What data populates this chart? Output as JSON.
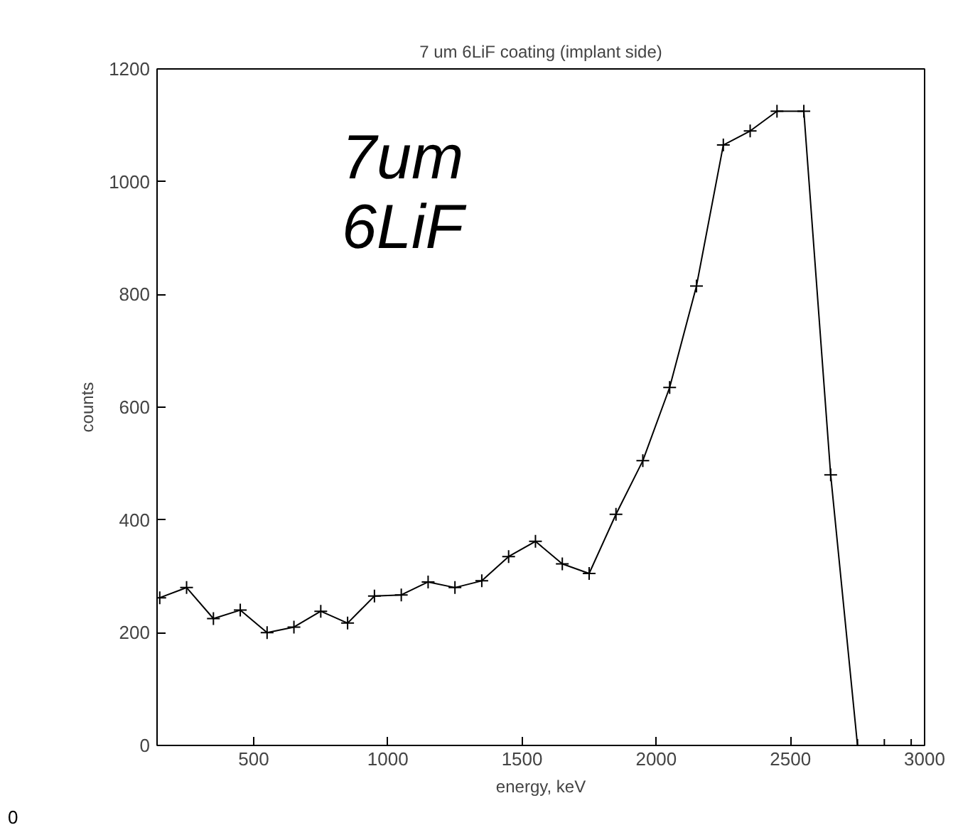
{
  "chart_data": {
    "type": "line",
    "title": "7 um 6LiF coating (implant side)",
    "xlabel": "energy, keV",
    "ylabel": "counts",
    "annotations": [
      "7um\n6LiF",
      "0"
    ],
    "x": [
      150,
      250,
      350,
      450,
      550,
      650,
      750,
      850,
      950,
      1050,
      1150,
      1250,
      1350,
      1450,
      1550,
      1650,
      1750,
      1850,
      1950,
      2050,
      2150,
      2250,
      2350,
      2450,
      2550,
      2650,
      2750,
      2850,
      2950
    ],
    "series": [
      {
        "color": "#000000",
        "values": [
          262,
          280,
          225,
          240,
          200,
          210,
          238,
          217,
          265,
          267,
          290,
          280,
          292,
          335,
          362,
          322,
          305,
          410,
          505,
          635,
          815,
          1065,
          1090,
          1125,
          1125,
          480,
          0,
          0,
          0
        ]
      }
    ],
    "xlim": [
      140,
      3000
    ],
    "ylim": [
      0,
      1200
    ],
    "xticks": [
      500,
      1000,
      1500,
      2000,
      2500,
      3000
    ],
    "yticks": [
      0,
      200,
      400,
      600,
      800,
      1000,
      1200
    ],
    "grid": false,
    "marker": "cross",
    "line_style": "solid"
  }
}
